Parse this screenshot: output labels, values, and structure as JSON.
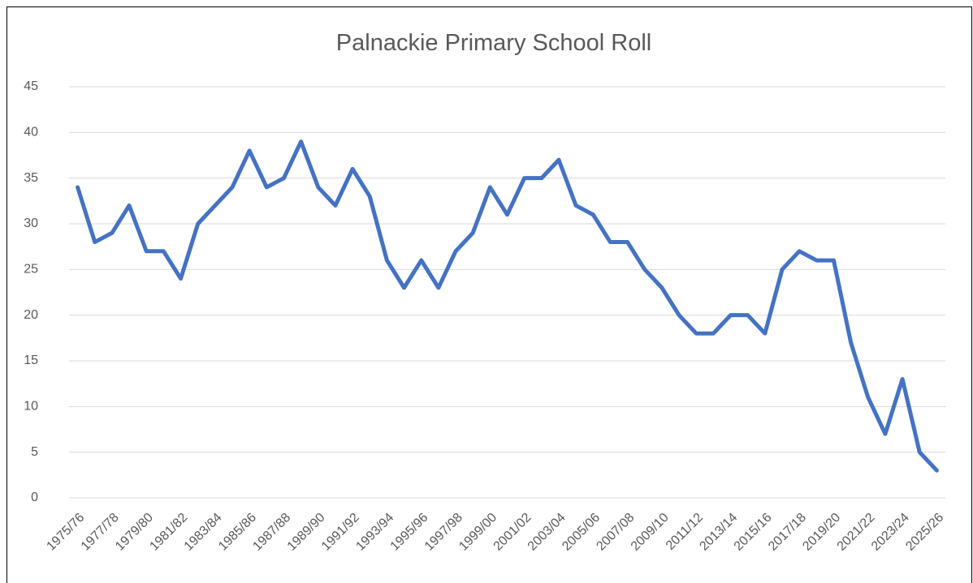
{
  "chart_data": {
    "type": "line",
    "title": "Palnackie Primary School Roll",
    "categories": [
      "1975/76",
      null,
      "1977/78",
      null,
      "1979/80",
      null,
      "1981/82",
      null,
      "1983/84",
      null,
      "1985/86",
      null,
      "1987/88",
      null,
      "1989/90",
      null,
      "1991/92",
      null,
      "1993/94",
      null,
      "1995/96",
      null,
      "1997/98",
      null,
      "1999/00",
      null,
      "2001/02",
      null,
      "2003/04",
      null,
      "2005/06",
      null,
      "2007/08",
      null,
      "2009/10",
      null,
      "2011/12",
      null,
      "2013/14",
      null,
      "2015/16",
      null,
      "2017/18",
      null,
      "2019/20",
      null,
      "2021/22",
      null,
      "2023/24",
      null,
      "2025/26"
    ],
    "values": [
      34,
      28,
      29,
      32,
      27,
      27,
      24,
      30,
      32,
      34,
      38,
      34,
      35,
      39,
      34,
      32,
      36,
      33,
      26,
      23,
      26,
      23,
      27,
      29,
      34,
      31,
      35,
      35,
      37,
      32,
      31,
      28,
      28,
      25,
      23,
      20,
      18,
      18,
      20,
      20,
      18,
      25,
      27,
      26,
      26,
      17,
      11,
      7,
      13,
      5,
      3
    ],
    "color": "#4472c4",
    "ylim": [
      0,
      45
    ],
    "yticks": [
      0,
      5,
      10,
      15,
      20,
      25,
      30,
      35,
      40,
      45
    ],
    "grid": true
  }
}
